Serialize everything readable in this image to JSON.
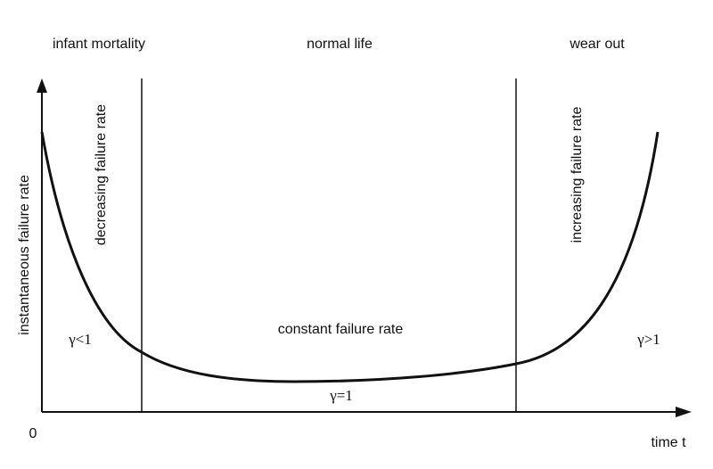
{
  "regions": {
    "left": "infant mortality",
    "middle": "normal life",
    "right": "wear out"
  },
  "phase_labels": {
    "decreasing": "decreasing failure rate",
    "increasing": "increasing failure rate",
    "constant": "constant failure rate"
  },
  "axes": {
    "y_label": "instantaneous failure rate",
    "x_label": "time t",
    "origin": "0"
  },
  "shape_labels": {
    "left": "γ<1",
    "middle": "γ=1",
    "right": "γ>1"
  }
}
